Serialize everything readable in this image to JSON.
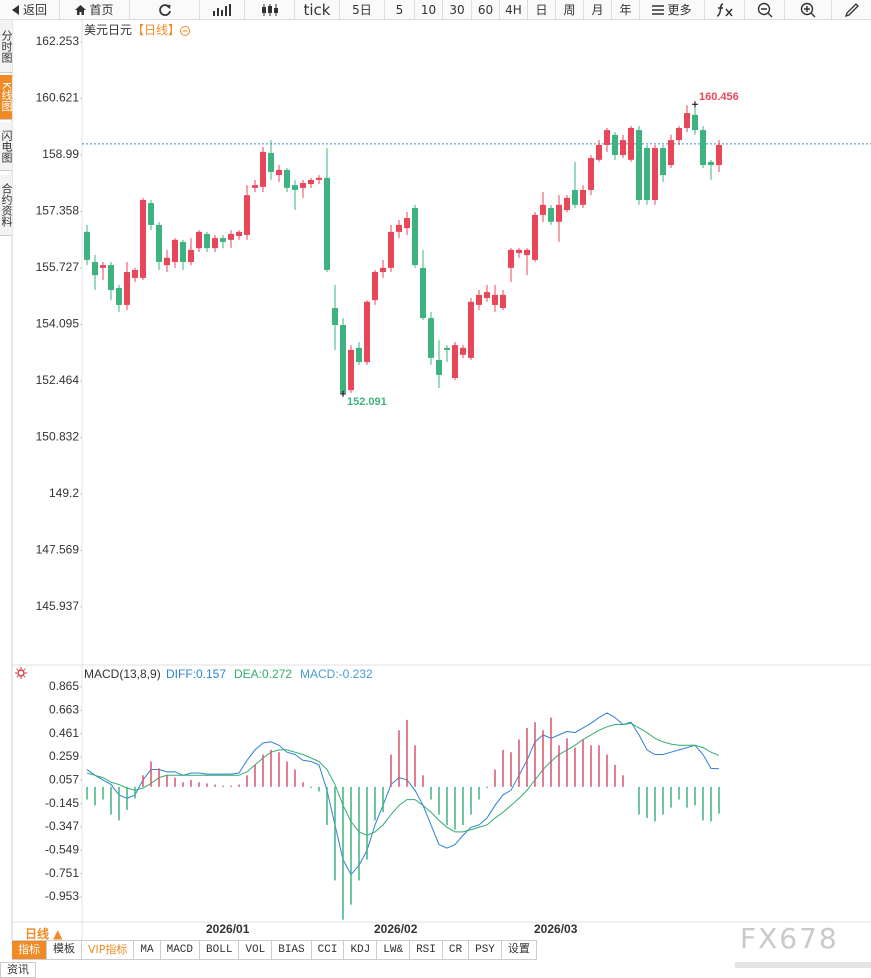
{
  "toolbar": [
    "返回",
    "首页",
    "tick",
    "5日",
    "5",
    "10",
    "30",
    "60",
    "4H",
    "日",
    "周",
    "月",
    "年",
    "更多"
  ],
  "side_tabs": [
    "分时图",
    "K线图",
    "闪电图",
    "合约资料"
  ],
  "chart_data": [
    {
      "type": "candlestick",
      "title": "美元日元",
      "period": "【日线】",
      "categories": [
        null,
        null,
        null,
        null,
        null,
        null,
        null,
        null,
        null,
        null,
        null,
        null,
        null,
        null,
        null,
        "2026/01",
        null,
        null,
        null,
        null,
        null,
        null,
        null,
        null,
        null,
        null,
        null,
        null,
        null,
        null,
        null,
        null,
        null,
        null,
        null,
        null,
        "2026/02",
        null,
        null,
        null,
        null,
        null,
        null,
        null,
        null,
        null,
        null,
        null,
        null,
        null,
        null,
        null,
        null,
        null,
        null,
        null,
        "2026/03",
        null,
        null,
        null,
        null,
        null,
        null,
        null,
        null,
        null,
        null,
        null,
        null,
        null,
        null,
        null,
        null,
        null,
        null,
        null,
        null,
        null,
        null,
        null
      ],
      "open": [
        156.77,
        155.9,
        155.73,
        155.81,
        155.15,
        154.66,
        155.44,
        155.44,
        157.6,
        156.97,
        155.81,
        155.9,
        156.48,
        155.9,
        156.3,
        156.71,
        156.3,
        156.59,
        156.54,
        156.65,
        156.68,
        158.04,
        158.07,
        159.05,
        158.41,
        158.56,
        158.12,
        158.04,
        158.15,
        158.27,
        158.33,
        154.57,
        154.08,
        152.2,
        153.42,
        153.01,
        154.8,
        155.61,
        155.73,
        156.77,
        156.88,
        157.46,
        155.73,
        154.28,
        153.07,
        153.42,
        152.55,
        153.22,
        153.13,
        154.66,
        154.86,
        154.66,
        154.57,
        155.73,
        156.16,
        156.1,
        155.96,
        157.26,
        157.46,
        157.06,
        157.4,
        157.98,
        157.55,
        157.98,
        158.85,
        159.28,
        159.57,
        158.99,
        158.85,
        159.71,
        159.19,
        157.69,
        159.19,
        158.7,
        159.42,
        159.77,
        160.15,
        159.71,
        158.79,
        158.7
      ],
      "high": [
        156.97,
        156.1,
        155.9,
        155.9,
        155.24,
        155.9,
        155.73,
        157.75,
        157.69,
        157.06,
        156.25,
        156.59,
        156.54,
        156.59,
        156.82,
        156.77,
        156.68,
        156.68,
        156.82,
        156.82,
        158.12,
        158.27,
        159.22,
        159.42,
        158.7,
        158.61,
        158.27,
        158.27,
        158.33,
        158.41,
        159.19,
        155.24,
        154.28,
        153.5,
        153.59,
        154.8,
        155.67,
        155.96,
        156.97,
        157.11,
        157.34,
        157.55,
        156.25,
        154.46,
        153.65,
        153.5,
        153.59,
        153.5,
        154.86,
        155.09,
        155.24,
        155.24,
        155.09,
        156.3,
        156.3,
        156.3,
        157.34,
        157.92,
        157.55,
        157.83,
        157.83,
        158.79,
        158.12,
        158.99,
        159.42,
        159.77,
        159.65,
        159.57,
        159.83,
        159.83,
        159.28,
        159.28,
        159.28,
        159.57,
        159.83,
        160.43,
        160.456,
        159.83,
        158.85,
        159.42
      ],
      "low": [
        155.81,
        155.09,
        155.38,
        154.8,
        154.46,
        154.51,
        155.32,
        155.38,
        156.82,
        155.67,
        155.61,
        155.73,
        155.67,
        155.81,
        156.19,
        156.19,
        156.19,
        156.3,
        156.3,
        156.54,
        156.54,
        157.92,
        157.92,
        158.27,
        158.21,
        157.92,
        157.4,
        157.75,
        158.04,
        158.15,
        155.61,
        153.36,
        152.091,
        152.12,
        152.93,
        152.93,
        154.66,
        155.44,
        155.61,
        156.59,
        156.68,
        155.73,
        154.23,
        152.93,
        152.26,
        153.01,
        152.49,
        153.13,
        153.07,
        154.51,
        154.75,
        154.46,
        154.51,
        155.32,
        156.02,
        155.52,
        155.9,
        157.06,
        156.97,
        156.48,
        157.34,
        157.46,
        157.46,
        157.83,
        158.79,
        159.08,
        158.85,
        158.9,
        158.79,
        157.55,
        157.55,
        157.55,
        158.21,
        158.61,
        159.28,
        159.65,
        159.57,
        158.61,
        158.27,
        158.5
      ],
      "close": [
        155.96,
        155.52,
        155.81,
        155.09,
        154.66,
        155.61,
        155.67,
        157.69,
        156.97,
        155.9,
        156.02,
        156.54,
        155.9,
        156.25,
        156.77,
        156.3,
        156.59,
        156.48,
        156.71,
        156.77,
        157.83,
        158.12,
        159.08,
        158.5,
        158.56,
        158.04,
        157.98,
        158.18,
        158.27,
        158.33,
        155.67,
        154.08,
        152.12,
        153.36,
        153.01,
        154.75,
        155.61,
        155.73,
        156.77,
        156.97,
        157.17,
        155.81,
        154.28,
        153.13,
        152.64,
        153.36,
        153.5,
        153.42,
        154.75,
        154.95,
        155.03,
        154.95,
        154.95,
        156.25,
        156.25,
        156.25,
        157.26,
        157.55,
        157.06,
        157.55,
        157.75,
        157.55,
        157.98,
        158.9,
        159.28,
        159.71,
        158.99,
        159.42,
        159.77,
        157.69,
        157.69,
        159.19,
        158.41,
        159.42,
        159.77,
        160.2,
        159.71,
        158.7,
        158.7,
        159.28
      ],
      "up_color": "#e8475a",
      "down_color": "#3fb37f",
      "period_color": "#f08a24",
      "hline": 159.31,
      "hline_color": "#3a8fc7",
      "ylim": [
        144.262,
        162.888
      ],
      "yticks": [
        162.253,
        160.621,
        158.99,
        157.358,
        155.727,
        154.095,
        152.464,
        150.832,
        149.2,
        147.569,
        145.937
      ],
      "grid": false
    },
    {
      "type": "macd",
      "title": "MACD(13,8,9)",
      "up_color": "#d9536a",
      "down_color": "#3fb37f",
      "series": [
        {
          "name": "DIFF:0.157",
          "color": "#2f80d8",
          "values": [
            0.15,
            0.1,
            0.06,
            0.02,
            -0.07,
            -0.1,
            -0.07,
            0.06,
            0.15,
            0.15,
            0.13,
            0.13,
            0.1,
            0.12,
            0.12,
            0.11,
            0.11,
            0.11,
            0.11,
            0.12,
            0.23,
            0.32,
            0.38,
            0.39,
            0.36,
            0.3,
            0.28,
            0.23,
            0.22,
            0.19,
            -0.03,
            -0.33,
            -0.63,
            -0.76,
            -0.68,
            -0.55,
            -0.33,
            -0.16,
            0.02,
            0.08,
            0.06,
            -0.03,
            -0.16,
            -0.33,
            -0.5,
            -0.53,
            -0.5,
            -0.42,
            -0.35,
            -0.33,
            -0.27,
            -0.16,
            -0.07,
            -0.03,
            0.1,
            0.23,
            0.39,
            0.45,
            0.42,
            0.45,
            0.48,
            0.47,
            0.51,
            0.55,
            0.6,
            0.64,
            0.6,
            0.54,
            0.56,
            0.45,
            0.32,
            0.28,
            0.28,
            0.3,
            0.32,
            0.34,
            0.36,
            0.28,
            0.16,
            0.157
          ]
        },
        {
          "name": "DEA:0.272",
          "color": "#2fae6e",
          "values": [
            0.12,
            0.1,
            0.08,
            0.04,
            0.02,
            -0.01,
            -0.03,
            -0.01,
            0.03,
            0.08,
            0.1,
            0.1,
            0.1,
            0.1,
            0.1,
            0.1,
            0.1,
            0.1,
            0.1,
            0.1,
            0.13,
            0.19,
            0.25,
            0.3,
            0.32,
            0.32,
            0.3,
            0.28,
            0.25,
            0.22,
            0.15,
            0.02,
            -0.16,
            -0.3,
            -0.39,
            -0.42,
            -0.39,
            -0.33,
            -0.24,
            -0.16,
            -0.11,
            -0.11,
            -0.16,
            -0.22,
            -0.29,
            -0.35,
            -0.39,
            -0.39,
            -0.37,
            -0.35,
            -0.33,
            -0.27,
            -0.22,
            -0.16,
            -0.1,
            -0.03,
            0.06,
            0.15,
            0.22,
            0.28,
            0.32,
            0.36,
            0.41,
            0.45,
            0.49,
            0.52,
            0.54,
            0.54,
            0.55,
            0.51,
            0.47,
            0.42,
            0.39,
            0.37,
            0.36,
            0.36,
            0.36,
            0.34,
            0.3,
            0.272
          ]
        },
        {
          "name": "MACD:-0.232",
          "color": "#4a9ad4",
          "values": [
            -0.11,
            -0.16,
            -0.11,
            -0.24,
            -0.29,
            -0.2,
            -0.1,
            0.1,
            0.22,
            0.16,
            0.1,
            0.08,
            0.04,
            0.06,
            0.04,
            0.03,
            0.02,
            0.01,
            0.01,
            0.02,
            0.1,
            0.19,
            0.28,
            0.32,
            0.3,
            0.22,
            0.15,
            0.04,
            -0.01,
            -0.04,
            -0.33,
            -0.81,
            -1.15,
            -1.02,
            -0.81,
            -0.63,
            -0.29,
            -0.22,
            0.28,
            0.49,
            0.58,
            0.36,
            0.1,
            -0.11,
            -0.24,
            -0.33,
            -0.37,
            -0.33,
            -0.24,
            -0.11,
            -0.01,
            0.15,
            0.32,
            0.3,
            0.41,
            0.51,
            0.56,
            0.49,
            0.6,
            0.36,
            0.42,
            0.34,
            0.41,
            0.36,
            0.36,
            0.28,
            0.19,
            0.1,
            0,
            -0.24,
            -0.27,
            -0.3,
            -0.24,
            -0.18,
            -0.11,
            -0.18,
            -0.16,
            -0.29,
            -0.3,
            -0.232
          ]
        }
      ],
      "ylim": [
        -1.17,
        1.055
      ],
      "yticks": [
        0.865,
        0.663,
        0.461,
        0.259,
        0.057,
        -0.145,
        -0.347,
        -0.549,
        -0.751,
        -0.953
      ],
      "grid": false
    }
  ],
  "period_selector": "日线 ▲",
  "indicator_tabs": [
    "指标",
    "模板",
    "VIP指标",
    "MA",
    "MACD",
    "BOLL",
    "VOL",
    "BIAS",
    "CCI",
    "KDJ",
    "LW&",
    "RSI",
    "CR",
    "PSY",
    "设置"
  ],
  "footer_tab": "资讯",
  "watermark": "FX678"
}
